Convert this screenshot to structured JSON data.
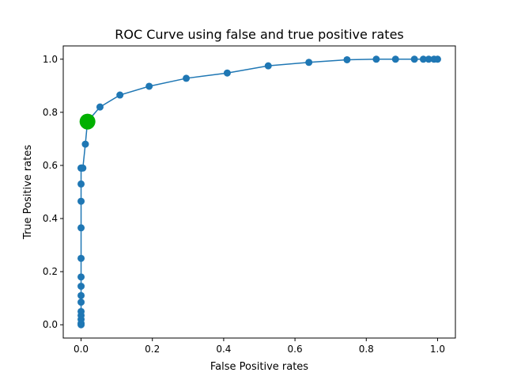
{
  "chart_data": {
    "type": "line",
    "title": "ROC Curve using false and true positive rates",
    "xlabel": "False Positive rates",
    "ylabel": "True Positive rates",
    "xlim": [
      -0.05,
      1.05
    ],
    "ylim": [
      -0.05,
      1.05
    ],
    "xticks": [
      0.0,
      0.2,
      0.4,
      0.6,
      0.8,
      1.0
    ],
    "yticks": [
      0.0,
      0.2,
      0.4,
      0.6,
      0.8,
      1.0
    ],
    "xtick_labels": [
      "0.0",
      "0.2",
      "0.4",
      "0.6",
      "0.8",
      "1.0"
    ],
    "ytick_labels": [
      "0.0",
      "0.2",
      "0.4",
      "0.6",
      "0.8",
      "1.0"
    ],
    "grid": false,
    "series": [
      {
        "color": "#1f77b4",
        "marker": "circle",
        "x": [
          0.0,
          0.0,
          0.0,
          0.0,
          0.0,
          0.0,
          0.0,
          0.0,
          0.0,
          0.0,
          0.0,
          0.0,
          0.0,
          0.0,
          0.0,
          0.002,
          0.005,
          0.012,
          0.018,
          0.053,
          0.109,
          0.191,
          0.295,
          0.41,
          0.525,
          0.639,
          0.746,
          0.828,
          0.882,
          0.935,
          0.96,
          0.975,
          0.99,
          1.0
        ],
        "y": [
          0.0,
          0.005,
          0.02,
          0.035,
          0.05,
          0.085,
          0.11,
          0.145,
          0.18,
          0.25,
          0.365,
          0.465,
          0.53,
          0.59,
          0.59,
          0.59,
          0.59,
          0.68,
          0.765,
          0.82,
          0.865,
          0.898,
          0.928,
          0.948,
          0.975,
          0.988,
          0.998,
          1.0,
          1.0,
          1.0,
          1.0,
          1.0,
          1.0,
          1.0
        ]
      }
    ],
    "highlight": {
      "x": 0.018,
      "y": 0.765,
      "color": "#00b000",
      "marker": "circle"
    }
  }
}
